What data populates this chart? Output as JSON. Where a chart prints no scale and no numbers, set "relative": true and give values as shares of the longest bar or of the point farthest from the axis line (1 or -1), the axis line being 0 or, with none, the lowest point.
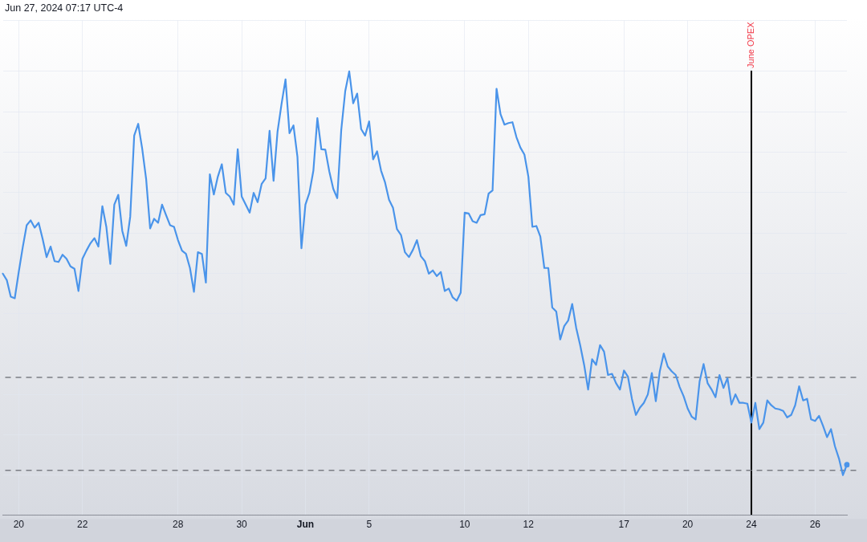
{
  "chart_data": {
    "type": "line",
    "relative": true,
    "color": "#4a94ea",
    "grid": true,
    "tick_labels": "x",
    "annotations": [
      "Jun 27, 2024 07:17 UTC-4"
    ],
    "categories": [
      null,
      null,
      null,
      null,
      "20",
      null,
      null,
      null,
      null,
      null,
      null,
      null,
      null,
      null,
      null,
      null,
      null,
      null,
      null,
      null,
      "22",
      null,
      null,
      null,
      null,
      null,
      null,
      null,
      null,
      null,
      null,
      null,
      null,
      null,
      null,
      null,
      null,
      null,
      null,
      null,
      null,
      null,
      null,
      null,
      "28",
      null,
      null,
      null,
      null,
      null,
      null,
      null,
      null,
      null,
      null,
      null,
      null,
      null,
      null,
      null,
      "30",
      null,
      null,
      null,
      null,
      null,
      null,
      null,
      null,
      null,
      null,
      null,
      null,
      null,
      null,
      null,
      "Jun",
      null,
      null,
      null,
      null,
      null,
      null,
      null,
      null,
      null,
      null,
      null,
      null,
      null,
      null,
      null,
      "5",
      null,
      null,
      null,
      null,
      null,
      null,
      null,
      null,
      null,
      null,
      null,
      null,
      null,
      null,
      null,
      null,
      null,
      null,
      null,
      null,
      null,
      null,
      null,
      "10",
      null,
      null,
      null,
      null,
      null,
      null,
      null,
      null,
      null,
      null,
      null,
      null,
      null,
      null,
      null,
      "12",
      null,
      null,
      null,
      null,
      null,
      null,
      null,
      null,
      null,
      null,
      null,
      null,
      null,
      null,
      null,
      null,
      null,
      null,
      null,
      null,
      null,
      null,
      null,
      "17",
      null,
      null,
      null,
      null,
      null,
      null,
      null,
      null,
      null,
      null,
      null,
      null,
      null,
      null,
      null,
      "20",
      null,
      null,
      null,
      null,
      null,
      null,
      null,
      null,
      null,
      null,
      null,
      null,
      null,
      null,
      null,
      "24",
      null,
      null,
      null,
      null,
      null,
      null,
      null,
      null,
      null,
      null,
      null,
      null,
      null,
      null,
      null,
      "26",
      null,
      null,
      null,
      null,
      null,
      null,
      null,
      null
    ],
    "values": [
      0.499,
      0.483,
      0.442,
      0.438,
      0.503,
      0.564,
      0.619,
      0.631,
      0.613,
      0.625,
      0.585,
      0.54,
      0.566,
      0.53,
      0.528,
      0.546,
      0.536,
      0.517,
      0.511,
      0.456,
      0.536,
      0.556,
      0.574,
      0.587,
      0.566,
      0.666,
      0.615,
      0.523,
      0.67,
      0.694,
      0.605,
      0.568,
      0.64,
      0.841,
      0.87,
      0.809,
      0.733,
      0.611,
      0.635,
      0.625,
      0.67,
      0.644,
      0.619,
      0.615,
      0.582,
      0.556,
      0.548,
      0.513,
      0.454,
      0.552,
      0.548,
      0.477,
      0.745,
      0.695,
      0.739,
      0.77,
      0.699,
      0.69,
      0.67,
      0.807,
      0.69,
      0.67,
      0.65,
      0.699,
      0.676,
      0.721,
      0.735,
      0.853,
      0.729,
      0.851,
      0.919,
      0.98,
      0.847,
      0.866,
      0.788,
      0.562,
      0.67,
      0.699,
      0.754,
      0.884,
      0.807,
      0.806,
      0.752,
      0.709,
      0.686,
      0.855,
      0.951,
      1,
      0.921,
      0.945,
      0.857,
      0.841,
      0.876,
      0.782,
      0.802,
      0.754,
      0.725,
      0.682,
      0.662,
      0.609,
      0.595,
      0.552,
      0.54,
      0.558,
      0.582,
      0.542,
      0.53,
      0.499,
      0.507,
      0.493,
      0.503,
      0.456,
      0.462,
      0.44,
      0.432,
      0.452,
      0.65,
      0.648,
      0.629,
      0.625,
      0.644,
      0.646,
      0.697,
      0.705,
      0.957,
      0.894,
      0.868,
      0.872,
      0.874,
      0.837,
      0.811,
      0.794,
      0.739,
      0.615,
      0.617,
      0.591,
      0.513,
      0.513,
      0.415,
      0.405,
      0.336,
      0.369,
      0.383,
      0.424,
      0.365,
      0.322,
      0.273,
      0.212,
      0.287,
      0.273,
      0.322,
      0.306,
      0.248,
      0.251,
      0.228,
      0.212,
      0.259,
      0.244,
      0.189,
      0.149,
      0.167,
      0.179,
      0.2,
      0.253,
      0.183,
      0.257,
      0.301,
      0.269,
      0.257,
      0.248,
      0.218,
      0.195,
      0.165,
      0.145,
      0.138,
      0.232,
      0.275,
      0.228,
      0.212,
      0.193,
      0.248,
      0.216,
      0.24,
      0.175,
      0.2,
      0.179,
      0.179,
      0.177,
      0.13,
      0.179,
      0.114,
      0.13,
      0.185,
      0.173,
      0.165,
      0.163,
      0.159,
      0.143,
      0.149,
      0.173,
      0.22,
      0.185,
      0.189,
      0.138,
      0.134,
      0.147,
      0.122,
      0.094,
      0.114,
      0.071,
      0.041,
      0,
      0.026
    ],
    "ref_lines": [
      {
        "axis": "x",
        "value": "24",
        "label": "June OPEX",
        "color": "#000000"
      },
      {
        "axis": "y",
        "value": 0.242,
        "color": "#7b7d84",
        "line_style": "dashed"
      },
      {
        "axis": "y",
        "value": 0.012,
        "color": "#7b7d84",
        "line_style": "dashed"
      }
    ]
  }
}
